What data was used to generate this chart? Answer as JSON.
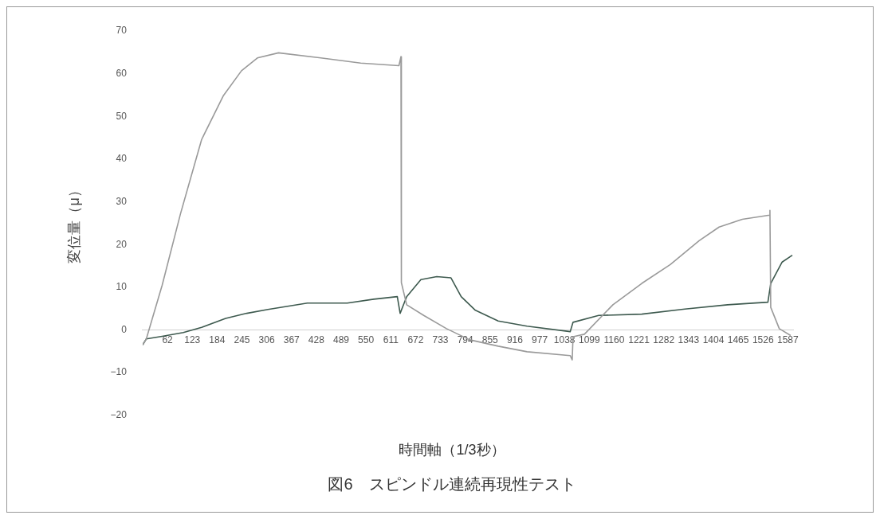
{
  "chart_data": {
    "type": "line",
    "title": "図6　スピンドル連続再現性テスト",
    "xlabel": "時間軸（1/3秒）",
    "ylabel": "変位量（μ）",
    "xlim": [
      1,
      1600
    ],
    "ylim": [
      -20,
      70
    ],
    "xticks": [
      62,
      123,
      184,
      245,
      306,
      367,
      428,
      489,
      550,
      611,
      672,
      733,
      794,
      855,
      916,
      977,
      1038,
      1099,
      1160,
      1221,
      1282,
      1343,
      1404,
      1465,
      1526,
      1587
    ],
    "yticks": [
      {
        "value": -20,
        "label": "−20"
      },
      {
        "value": -10,
        "label": "−10"
      },
      0,
      10,
      20,
      30,
      40,
      50,
      60,
      70
    ],
    "grid": false,
    "legend": false,
    "marker": "none",
    "line_style": "solid",
    "series": [
      {
        "color": "#9a9a9a",
        "x": [
          1,
          10,
          49,
          94,
          146,
          199,
          244,
          283,
          335,
          439,
          537,
          631,
          636,
          637,
          650,
          692,
          748,
          805,
          875,
          946,
          1052,
          1057,
          1059,
          1087,
          1157,
          1228,
          1298,
          1369,
          1418,
          1475,
          1542,
          1543,
          1545,
          1566,
          1594
        ],
        "values": [
          -3.5,
          -2.1,
          10.5,
          27.2,
          44.6,
          54.8,
          60.7,
          63.7,
          64.9,
          63.7,
          62.5,
          61.9,
          64,
          11.1,
          5.9,
          3.4,
          0.3,
          -2.3,
          -3.8,
          -5.1,
          -6,
          -7,
          -1.6,
          -1,
          5.9,
          10.9,
          15.3,
          20.9,
          24.1,
          25.9,
          26.9,
          28,
          5.3,
          0.3,
          -1.3
        ]
      },
      {
        "color": "#3e5a4f",
        "x": [
          1,
          10,
          49,
          101,
          146,
          205,
          257,
          309,
          406,
          504,
          569,
          627,
          634,
          650,
          685,
          724,
          759,
          784,
          819,
          875,
          946,
          1052,
          1059,
          1122,
          1228,
          1334,
          1439,
          1538,
          1545,
          1573,
          1598
        ],
        "values": [
          -3.5,
          -2.1,
          -1.5,
          -0.6,
          0.6,
          2.7,
          3.9,
          4.8,
          6.3,
          6.3,
          7.2,
          7.8,
          3.9,
          7.8,
          11.8,
          12.5,
          12.2,
          7.8,
          4.6,
          2.1,
          0.9,
          -0.4,
          1.8,
          3.4,
          3.7,
          4.9,
          5.9,
          6.5,
          10.9,
          15.9,
          17.5
        ]
      }
    ]
  }
}
